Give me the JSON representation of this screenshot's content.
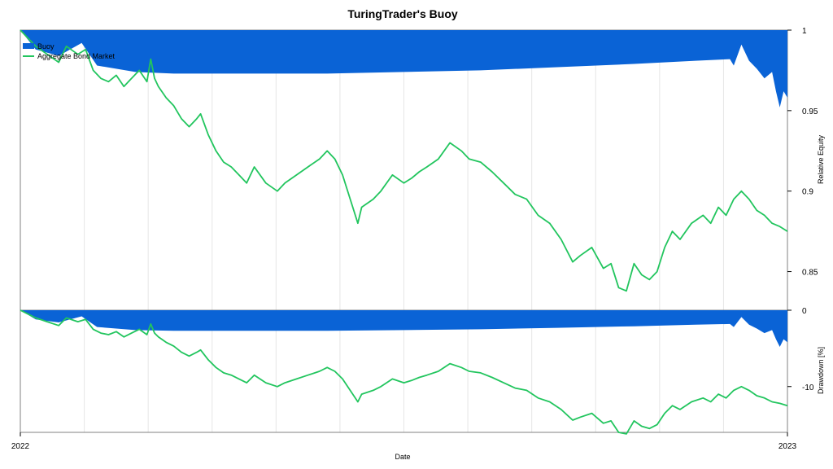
{
  "chart_data": {
    "type": "area",
    "title": "TuringTrader's Buoy",
    "xlabel": "Date",
    "x_tick_labels": [
      "2022",
      "2023"
    ],
    "legend": {
      "placement": "top-left",
      "entries": [
        "Buoy",
        "Aggregate Bond Market"
      ]
    },
    "colors": {
      "buoy": "#0a63d6",
      "bond": "#22c55e",
      "grid": "#e6e6e6",
      "axis": "#000000"
    },
    "panels": [
      {
        "name": "equity",
        "ylabel": "Relative Equity",
        "ylim": [
          0.826,
          1.0
        ],
        "y_ticks": [
          1,
          0.95,
          0.9,
          0.85
        ],
        "y_tick_labels": [
          "1",
          "0.95",
          "0.9",
          "0.85"
        ]
      },
      {
        "name": "drawdown",
        "ylabel": "Drawdown [%]",
        "ylim": [
          -16,
          0
        ],
        "y_ticks": [
          0,
          -10
        ],
        "y_tick_labels": [
          "0",
          "-10"
        ]
      }
    ],
    "series": [
      {
        "name": "Buoy",
        "style": "area",
        "x": [
          0,
          0.02,
          0.05,
          0.08,
          0.1,
          0.15,
          0.2,
          0.3,
          0.4,
          0.5,
          0.6,
          0.7,
          0.8,
          0.88,
          0.925,
          0.93,
          0.94,
          0.95,
          0.96,
          0.97,
          0.98,
          0.985,
          0.99,
          0.995,
          1.0
        ],
        "equity": [
          1.0,
          0.988,
          0.984,
          0.992,
          0.978,
          0.974,
          0.973,
          0.973,
          0.973,
          0.974,
          0.975,
          0.977,
          0.979,
          0.981,
          0.982,
          0.978,
          0.991,
          0.981,
          0.976,
          0.97,
          0.974,
          0.962,
          0.952,
          0.962,
          0.958
        ],
        "drawdown": [
          0,
          -1.2,
          -1.6,
          -0.8,
          -2.2,
          -2.6,
          -2.7,
          -2.7,
          -2.7,
          -2.6,
          -2.5,
          -2.3,
          -2.1,
          -1.9,
          -1.8,
          -2.2,
          -0.9,
          -1.9,
          -2.4,
          -3.0,
          -2.6,
          -3.8,
          -4.8,
          -3.8,
          -4.2
        ]
      },
      {
        "name": "Aggregate Bond Market",
        "style": "line",
        "x": [
          0,
          0.01,
          0.02,
          0.035,
          0.05,
          0.06,
          0.075,
          0.085,
          0.095,
          0.105,
          0.115,
          0.125,
          0.135,
          0.145,
          0.155,
          0.165,
          0.17,
          0.175,
          0.18,
          0.19,
          0.2,
          0.21,
          0.22,
          0.23,
          0.235,
          0.245,
          0.255,
          0.265,
          0.275,
          0.285,
          0.295,
          0.305,
          0.32,
          0.335,
          0.345,
          0.36,
          0.375,
          0.39,
          0.4,
          0.41,
          0.42,
          0.44,
          0.445,
          0.46,
          0.47,
          0.485,
          0.5,
          0.51,
          0.52,
          0.53,
          0.545,
          0.56,
          0.575,
          0.585,
          0.6,
          0.615,
          0.63,
          0.645,
          0.66,
          0.675,
          0.69,
          0.705,
          0.72,
          0.73,
          0.745,
          0.76,
          0.77,
          0.78,
          0.79,
          0.8,
          0.81,
          0.82,
          0.83,
          0.84,
          0.85,
          0.86,
          0.875,
          0.89,
          0.9,
          0.91,
          0.92,
          0.93,
          0.94,
          0.95,
          0.96,
          0.97,
          0.98,
          0.99,
          1.0
        ],
        "equity": [
          1.0,
          0.995,
          0.99,
          0.985,
          0.98,
          0.99,
          0.985,
          0.988,
          0.975,
          0.97,
          0.968,
          0.972,
          0.965,
          0.97,
          0.975,
          0.968,
          0.982,
          0.97,
          0.965,
          0.958,
          0.953,
          0.945,
          0.94,
          0.945,
          0.948,
          0.935,
          0.925,
          0.918,
          0.915,
          0.91,
          0.905,
          0.915,
          0.905,
          0.9,
          0.905,
          0.91,
          0.915,
          0.92,
          0.925,
          0.92,
          0.91,
          0.88,
          0.89,
          0.895,
          0.9,
          0.91,
          0.905,
          0.908,
          0.912,
          0.915,
          0.92,
          0.93,
          0.925,
          0.92,
          0.918,
          0.912,
          0.905,
          0.898,
          0.895,
          0.885,
          0.88,
          0.87,
          0.856,
          0.86,
          0.865,
          0.852,
          0.855,
          0.84,
          0.838,
          0.855,
          0.848,
          0.845,
          0.85,
          0.865,
          0.875,
          0.87,
          0.88,
          0.885,
          0.88,
          0.89,
          0.885,
          0.895,
          0.9,
          0.895,
          0.888,
          0.885,
          0.88,
          0.878,
          0.875
        ]
      }
    ]
  }
}
